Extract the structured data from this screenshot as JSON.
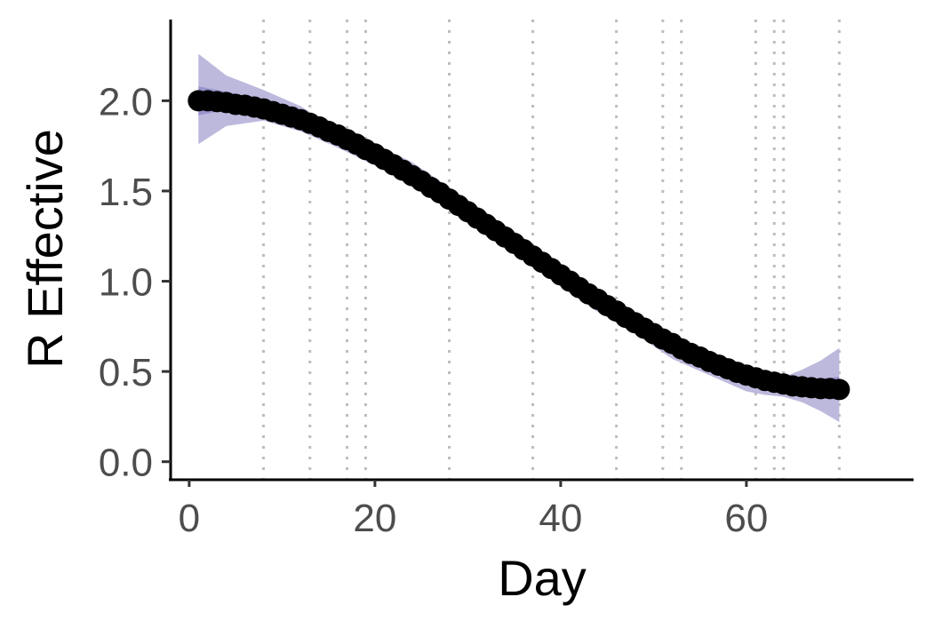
{
  "chart_data": {
    "type": "line",
    "xlabel": "Day",
    "ylabel": "R Effective",
    "xlim": [
      -2,
      78
    ],
    "ylim": [
      -0.1,
      2.45
    ],
    "x_ticks": [
      0,
      20,
      40,
      60
    ],
    "x_tick_labels": [
      "0",
      "20",
      "40",
      "60"
    ],
    "y_ticks": [
      0.0,
      0.5,
      1.0,
      1.5,
      2.0
    ],
    "y_tick_labels": [
      "0.0",
      "0.5",
      "1.0",
      "1.5",
      "2.0"
    ],
    "grid": false,
    "vertical_reference_lines": [
      8,
      13,
      17,
      19,
      28,
      37,
      46,
      51,
      53,
      61,
      63,
      64,
      70
    ],
    "colors": {
      "point": "#000000",
      "band_outer": "#b8b5db",
      "band_inner": "#7b75c0",
      "reference_line": "#bdbdbd",
      "axis": "#000000"
    },
    "series": [
      {
        "type": "points",
        "x": [
          1,
          2,
          3,
          4,
          5,
          6,
          7,
          8,
          9,
          10,
          11,
          12,
          13,
          14,
          15,
          16,
          17,
          18,
          19,
          20,
          21,
          22,
          23,
          24,
          25,
          26,
          27,
          28,
          29,
          30,
          31,
          32,
          33,
          34,
          35,
          36,
          37,
          38,
          39,
          40,
          41,
          42,
          43,
          44,
          45,
          46,
          47,
          48,
          49,
          50,
          51,
          52,
          53,
          54,
          55,
          56,
          57,
          58,
          59,
          60,
          61,
          62,
          63,
          64,
          65,
          66,
          67,
          68,
          69,
          70
        ],
        "values": [
          2.0,
          2.0,
          1.995,
          1.99,
          1.98,
          1.975,
          1.965,
          1.955,
          1.94,
          1.925,
          1.91,
          1.895,
          1.875,
          1.855,
          1.83,
          1.81,
          1.785,
          1.76,
          1.73,
          1.705,
          1.675,
          1.645,
          1.615,
          1.585,
          1.555,
          1.52,
          1.49,
          1.455,
          1.42,
          1.385,
          1.35,
          1.315,
          1.28,
          1.245,
          1.21,
          1.175,
          1.14,
          1.105,
          1.07,
          1.035,
          1.0,
          0.965,
          0.93,
          0.9,
          0.865,
          0.835,
          0.8,
          0.77,
          0.74,
          0.71,
          0.68,
          0.655,
          0.625,
          0.6,
          0.58,
          0.555,
          0.535,
          0.515,
          0.495,
          0.48,
          0.465,
          0.45,
          0.44,
          0.43,
          0.42,
          0.415,
          0.41,
          0.405,
          0.405,
          0.4
        ]
      },
      {
        "type": "band",
        "x": [
          1,
          4,
          8,
          12,
          16,
          20,
          24,
          28,
          32,
          36,
          40,
          44,
          48,
          52,
          56,
          60,
          62,
          64,
          66,
          68,
          70
        ],
        "lower": [
          1.76,
          1.86,
          1.89,
          1.83,
          1.74,
          1.64,
          1.54,
          1.39,
          1.25,
          1.12,
          0.97,
          0.83,
          0.71,
          0.57,
          0.48,
          0.39,
          0.37,
          0.36,
          0.33,
          0.28,
          0.22
        ],
        "upper": [
          2.26,
          2.14,
          2.06,
          1.97,
          1.84,
          1.76,
          1.66,
          1.52,
          1.38,
          1.24,
          1.08,
          0.94,
          0.81,
          0.68,
          0.58,
          0.52,
          0.49,
          0.47,
          0.51,
          0.56,
          0.63
        ]
      },
      {
        "type": "band",
        "x": [
          1,
          4,
          8,
          12,
          16,
          20,
          24,
          28,
          32,
          36,
          40,
          44,
          48,
          52,
          56,
          60,
          62,
          64,
          66,
          68,
          70
        ],
        "lower": [
          1.92,
          1.95,
          1.94,
          1.88,
          1.79,
          1.7,
          1.6,
          1.44,
          1.31,
          1.16,
          1.01,
          0.87,
          0.74,
          0.61,
          0.52,
          0.46,
          0.43,
          0.41,
          0.38,
          0.36,
          0.34
        ],
        "upper": [
          2.08,
          2.05,
          2.0,
          1.92,
          1.81,
          1.71,
          1.62,
          1.47,
          1.34,
          1.2,
          1.04,
          0.9,
          0.78,
          0.66,
          0.55,
          0.49,
          0.47,
          0.45,
          0.45,
          0.46,
          0.47
        ]
      }
    ]
  }
}
